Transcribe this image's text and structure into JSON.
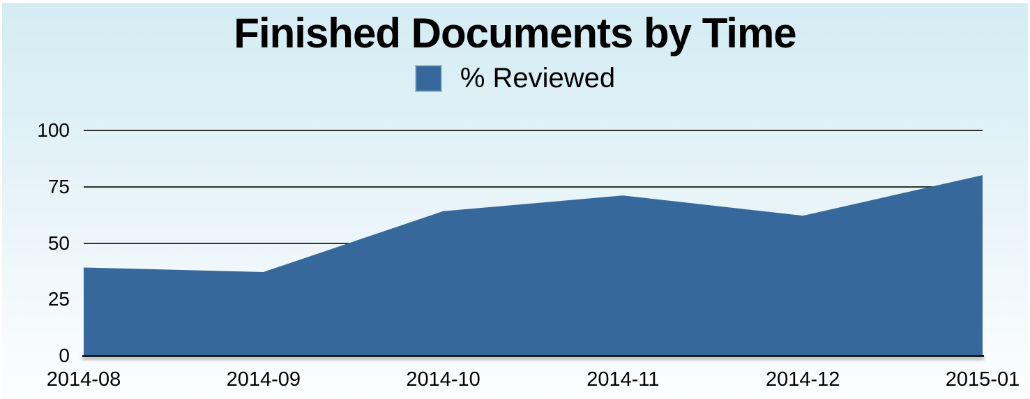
{
  "title": "Finished Documents by Time",
  "legend": {
    "label": "% Reviewed",
    "swatch_color": "#36689B"
  },
  "colors": {
    "area_fill": "#36689B",
    "legend_swatch_border": "#9bb8d3",
    "gridline": "#303030",
    "baseline": "#1c1c1c",
    "background_top": "#d4ecf4",
    "background_bottom": "#fbfdfe",
    "text": "#000000"
  },
  "chart_data": {
    "type": "area",
    "title": "Finished Documents by Time",
    "categories": [
      "2014-08",
      "2014-09",
      "2014-10",
      "2014-11",
      "2014-12",
      "2015-01"
    ],
    "series": [
      {
        "name": "% Reviewed",
        "values": [
          39,
          37,
          64,
          71,
          62,
          80
        ]
      }
    ],
    "xlabel": "",
    "ylabel": "",
    "ylim": [
      0,
      100
    ],
    "yticks": [
      0,
      25,
      50,
      75,
      100
    ],
    "grid": true,
    "legend_position": "top",
    "area_color": "#36689B"
  }
}
